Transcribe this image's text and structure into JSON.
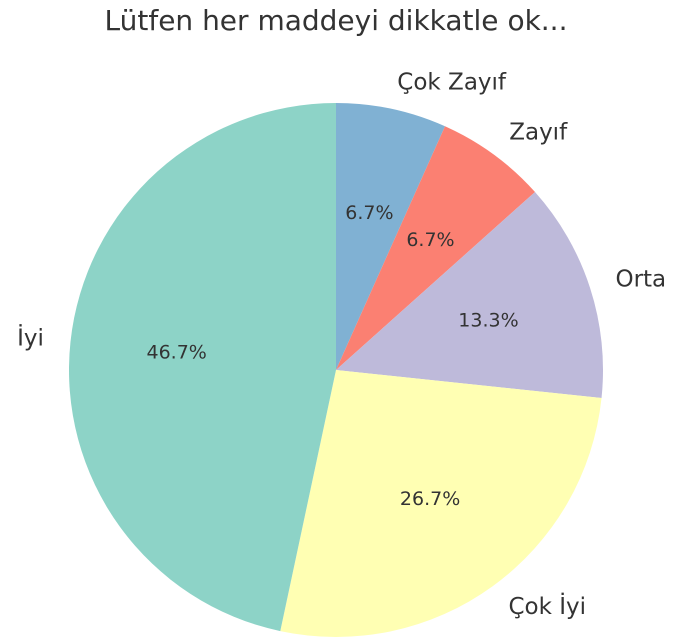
{
  "chart_data": {
    "type": "pie",
    "title": "Lütfen her maddeyi dikkatle ok...",
    "categories": [
      "Çok Zayıf",
      "Zayıf",
      "Orta",
      "Çok İyi",
      "İyi"
    ],
    "values": [
      6.7,
      6.7,
      13.3,
      26.7,
      46.7
    ],
    "value_labels": [
      "6.7%",
      "6.7%",
      "13.3%",
      "26.7%",
      "46.7%"
    ],
    "colors": [
      "#80b1d3",
      "#fb8072",
      "#bebada",
      "#ffffb3",
      "#8dd3c7"
    ]
  }
}
